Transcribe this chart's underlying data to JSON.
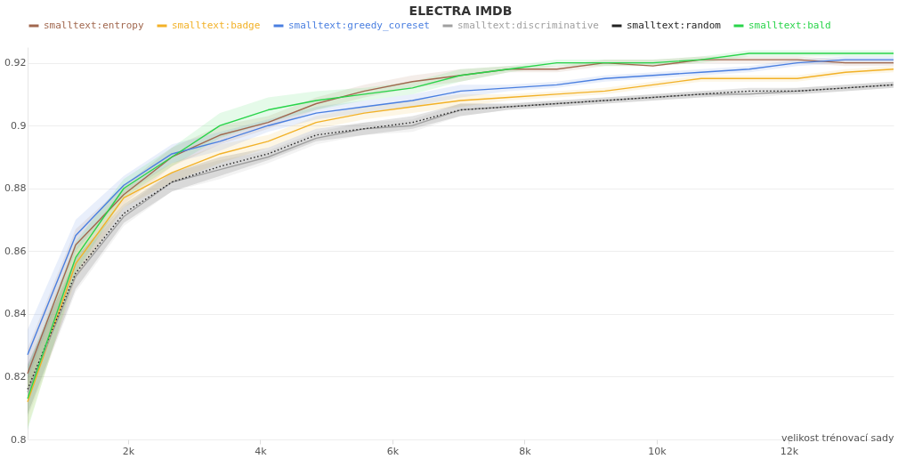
{
  "chart_data": {
    "type": "line",
    "title": "ELECTRA IMDB",
    "xlabel": "velikost trénovací sady",
    "x": [
      480,
      1208,
      1936,
      2664,
      3392,
      4120,
      4848,
      5576,
      6304,
      7032,
      7760,
      8488,
      9216,
      9944,
      10672,
      11400,
      12128,
      12856,
      13584
    ],
    "xlim": [
      480,
      13584
    ],
    "xticks": [
      {
        "value": 2000,
        "label": "2k"
      },
      {
        "value": 4000,
        "label": "4k"
      },
      {
        "value": 6000,
        "label": "6k"
      },
      {
        "value": 8000,
        "label": "8k"
      },
      {
        "value": 10000,
        "label": "10k"
      },
      {
        "value": 12000,
        "label": "12k"
      }
    ],
    "ylim": [
      0.8,
      0.925
    ],
    "yticks": [
      0.8,
      0.82,
      0.84,
      0.86,
      0.88,
      0.9,
      0.92
    ],
    "grid": "y",
    "legend": "top",
    "line_style": "solid",
    "series": [
      {
        "name": "smalltext:entropy",
        "color": "#a1674e",
        "values": [
          0.821,
          0.862,
          0.878,
          0.89,
          0.897,
          0.901,
          0.907,
          0.911,
          0.914,
          0.916,
          0.918,
          0.918,
          0.92,
          0.919,
          0.921,
          0.921,
          0.921,
          0.92,
          0.92
        ],
        "lower": [
          0.813,
          0.857,
          0.875,
          0.887,
          0.894,
          0.899,
          0.905,
          0.909,
          0.912,
          0.914,
          0.917,
          0.917,
          0.919,
          0.919,
          0.92,
          0.92,
          0.92,
          0.919,
          0.919
        ],
        "upper": [
          0.829,
          0.867,
          0.881,
          0.893,
          0.9,
          0.903,
          0.909,
          0.913,
          0.916,
          0.918,
          0.919,
          0.919,
          0.921,
          0.921,
          0.922,
          0.922,
          0.922,
          0.921,
          0.921
        ]
      },
      {
        "name": "smalltext:badge",
        "color": "#f2b127",
        "values": [
          0.812,
          0.856,
          0.877,
          0.885,
          0.891,
          0.895,
          0.901,
          0.904,
          0.906,
          0.908,
          0.909,
          0.91,
          0.911,
          0.913,
          0.915,
          0.915,
          0.915,
          0.917,
          0.918
        ],
        "lower": [
          0.804,
          0.851,
          0.874,
          0.882,
          0.888,
          0.893,
          0.899,
          0.902,
          0.904,
          0.906,
          0.908,
          0.909,
          0.91,
          0.912,
          0.914,
          0.914,
          0.914,
          0.916,
          0.917
        ],
        "upper": [
          0.82,
          0.861,
          0.88,
          0.888,
          0.894,
          0.897,
          0.903,
          0.906,
          0.908,
          0.91,
          0.91,
          0.911,
          0.912,
          0.914,
          0.916,
          0.916,
          0.916,
          0.918,
          0.919
        ]
      },
      {
        "name": "smalltext:greedy_coreset",
        "color": "#4a7fe0",
        "values": [
          0.827,
          0.865,
          0.881,
          0.891,
          0.895,
          0.9,
          0.904,
          0.906,
          0.908,
          0.911,
          0.912,
          0.913,
          0.915,
          0.916,
          0.917,
          0.918,
          0.92,
          0.921,
          0.921
        ],
        "lower": [
          0.819,
          0.86,
          0.878,
          0.888,
          0.892,
          0.898,
          0.902,
          0.904,
          0.906,
          0.909,
          0.911,
          0.912,
          0.914,
          0.915,
          0.916,
          0.917,
          0.919,
          0.92,
          0.92
        ],
        "upper": [
          0.835,
          0.87,
          0.884,
          0.894,
          0.898,
          0.902,
          0.906,
          0.908,
          0.91,
          0.913,
          0.913,
          0.914,
          0.916,
          0.917,
          0.918,
          0.919,
          0.921,
          0.922,
          0.922
        ]
      },
      {
        "name": "smalltext:discriminative",
        "color": "#a0a0a0",
        "values": [
          0.815,
          0.852,
          0.871,
          0.882,
          0.886,
          0.89,
          0.896,
          0.899,
          0.9,
          0.905,
          0.906,
          0.907,
          0.908,
          0.909,
          0.91,
          0.91,
          0.911,
          0.912,
          0.913
        ],
        "lower": [
          0.807,
          0.847,
          0.868,
          0.879,
          0.883,
          0.888,
          0.894,
          0.897,
          0.898,
          0.903,
          0.905,
          0.906,
          0.907,
          0.908,
          0.909,
          0.909,
          0.91,
          0.911,
          0.912
        ],
        "upper": [
          0.823,
          0.857,
          0.874,
          0.885,
          0.889,
          0.892,
          0.898,
          0.901,
          0.902,
          0.907,
          0.907,
          0.908,
          0.909,
          0.91,
          0.911,
          0.911,
          0.912,
          0.913,
          0.914
        ]
      },
      {
        "name": "smalltext:random",
        "color": "#222222",
        "line_style": "dotted",
        "values": [
          0.816,
          0.853,
          0.872,
          0.882,
          0.887,
          0.891,
          0.897,
          0.899,
          0.901,
          0.905,
          0.906,
          0.907,
          0.908,
          0.909,
          0.91,
          0.911,
          0.911,
          0.912,
          0.913
        ],
        "lower": [
          0.808,
          0.848,
          0.869,
          0.879,
          0.884,
          0.889,
          0.895,
          0.897,
          0.899,
          0.903,
          0.905,
          0.906,
          0.907,
          0.908,
          0.909,
          0.91,
          0.91,
          0.911,
          0.912
        ],
        "upper": [
          0.824,
          0.858,
          0.875,
          0.885,
          0.89,
          0.893,
          0.899,
          0.901,
          0.903,
          0.907,
          0.907,
          0.908,
          0.909,
          0.91,
          0.911,
          0.912,
          0.912,
          0.913,
          0.914
        ]
      },
      {
        "name": "smalltext:bald",
        "color": "#29d44a",
        "values": [
          0.813,
          0.858,
          0.88,
          0.89,
          0.9,
          0.905,
          0.908,
          0.91,
          0.912,
          0.916,
          0.918,
          0.92,
          0.92,
          0.92,
          0.921,
          0.923,
          0.923,
          0.923,
          0.923
        ],
        "lower": [
          0.803,
          0.853,
          0.877,
          0.887,
          0.896,
          0.901,
          0.905,
          0.908,
          0.91,
          0.914,
          0.917,
          0.919,
          0.919,
          0.919,
          0.92,
          0.922,
          0.922,
          0.922,
          0.922
        ],
        "upper": [
          0.823,
          0.863,
          0.883,
          0.893,
          0.904,
          0.909,
          0.911,
          0.912,
          0.914,
          0.918,
          0.919,
          0.921,
          0.921,
          0.921,
          0.922,
          0.924,
          0.924,
          0.924,
          0.924
        ]
      }
    ]
  }
}
